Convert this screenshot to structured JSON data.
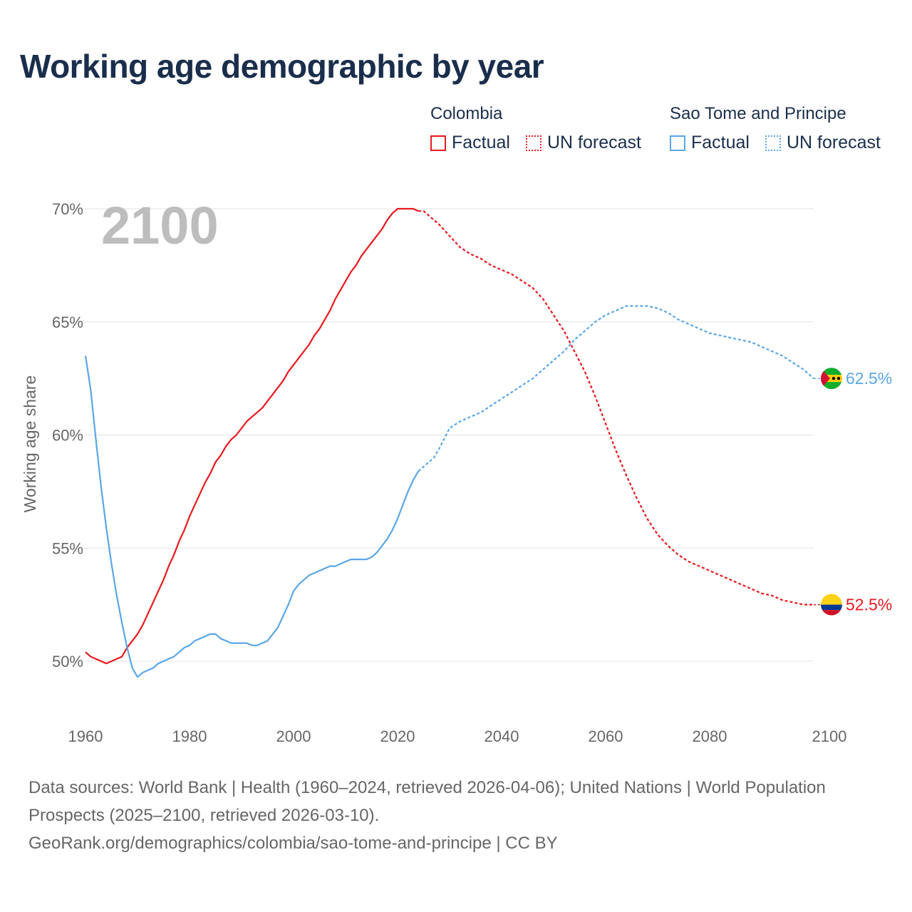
{
  "title": "Working age demographic by year",
  "legend": {
    "groups": [
      {
        "name": "Colombia",
        "color": "#e8191e",
        "factual_label": "Factual",
        "forecast_label": "UN forecast"
      },
      {
        "name": "Sao Tome and Principe",
        "color": "#5aa6e6",
        "factual_label": "Factual",
        "forecast_label": "UN forecast"
      }
    ]
  },
  "footer": {
    "sources": "Data sources: World Bank | Health (1960–2024, retrieved 2026-04-06); United Nations | World Population Prospects (2025–2100, retrieved 2026-03-10).",
    "url": "GeoRank.org/demographics/colombia/sao-tome-and-principe | CC BY"
  },
  "chart_data": {
    "type": "line",
    "title": "Working age demographic by year",
    "ylabel": "Working age share",
    "xlabel": "",
    "year_overlay": "2100",
    "xlim": [
      1960,
      2100
    ],
    "ylim": [
      48,
      71
    ],
    "x_ticks": [
      1960,
      1980,
      2000,
      2020,
      2040,
      2060,
      2080,
      2100
    ],
    "x_tick_labels": [
      "1960",
      "1980",
      "2000",
      "2020",
      "2040",
      "2060",
      "2080",
      "2100"
    ],
    "y_ticks": [
      50,
      55,
      60,
      65,
      70
    ],
    "y_tick_labels": [
      "50%",
      "55%",
      "60%",
      "65%",
      "70%"
    ],
    "forecast_start": 2024,
    "series": [
      {
        "name": "Colombia",
        "color": "#e8191e",
        "end_label": "52.5%",
        "flag": "colombia",
        "points": [
          [
            1960,
            50.4
          ],
          [
            1961,
            50.2
          ],
          [
            1962,
            50.1
          ],
          [
            1963,
            50.0
          ],
          [
            1964,
            49.9
          ],
          [
            1965,
            50.0
          ],
          [
            1966,
            50.1
          ],
          [
            1967,
            50.2
          ],
          [
            1968,
            50.6
          ],
          [
            1969,
            50.9
          ],
          [
            1970,
            51.2
          ],
          [
            1971,
            51.6
          ],
          [
            1972,
            52.1
          ],
          [
            1973,
            52.6
          ],
          [
            1974,
            53.1
          ],
          [
            1975,
            53.6
          ],
          [
            1976,
            54.2
          ],
          [
            1977,
            54.7
          ],
          [
            1978,
            55.3
          ],
          [
            1979,
            55.8
          ],
          [
            1980,
            56.4
          ],
          [
            1981,
            56.9
          ],
          [
            1982,
            57.4
          ],
          [
            1983,
            57.9
          ],
          [
            1984,
            58.3
          ],
          [
            1985,
            58.8
          ],
          [
            1986,
            59.1
          ],
          [
            1987,
            59.5
          ],
          [
            1988,
            59.8
          ],
          [
            1989,
            60.0
          ],
          [
            1990,
            60.3
          ],
          [
            1991,
            60.6
          ],
          [
            1992,
            60.8
          ],
          [
            1993,
            61.0
          ],
          [
            1994,
            61.2
          ],
          [
            1995,
            61.5
          ],
          [
            1996,
            61.8
          ],
          [
            1997,
            62.1
          ],
          [
            1998,
            62.4
          ],
          [
            1999,
            62.8
          ],
          [
            2000,
            63.1
          ],
          [
            2001,
            63.4
          ],
          [
            2002,
            63.7
          ],
          [
            2003,
            64.0
          ],
          [
            2004,
            64.4
          ],
          [
            2005,
            64.7
          ],
          [
            2006,
            65.1
          ],
          [
            2007,
            65.5
          ],
          [
            2008,
            66.0
          ],
          [
            2009,
            66.4
          ],
          [
            2010,
            66.8
          ],
          [
            2011,
            67.2
          ],
          [
            2012,
            67.5
          ],
          [
            2013,
            67.9
          ],
          [
            2014,
            68.2
          ],
          [
            2015,
            68.5
          ],
          [
            2016,
            68.8
          ],
          [
            2017,
            69.1
          ],
          [
            2018,
            69.5
          ],
          [
            2019,
            69.8
          ],
          [
            2020,
            70.0
          ],
          [
            2021,
            70.0
          ],
          [
            2022,
            70.0
          ],
          [
            2023,
            70.0
          ],
          [
            2024,
            69.9
          ],
          [
            2025,
            69.9
          ],
          [
            2026,
            69.7
          ],
          [
            2028,
            69.3
          ],
          [
            2030,
            68.8
          ],
          [
            2032,
            68.3
          ],
          [
            2034,
            68.0
          ],
          [
            2036,
            67.8
          ],
          [
            2038,
            67.5
          ],
          [
            2040,
            67.3
          ],
          [
            2042,
            67.1
          ],
          [
            2044,
            66.8
          ],
          [
            2046,
            66.5
          ],
          [
            2048,
            66.0
          ],
          [
            2050,
            65.3
          ],
          [
            2052,
            64.6
          ],
          [
            2054,
            63.7
          ],
          [
            2056,
            62.8
          ],
          [
            2058,
            61.7
          ],
          [
            2060,
            60.5
          ],
          [
            2062,
            59.3
          ],
          [
            2064,
            58.2
          ],
          [
            2066,
            57.2
          ],
          [
            2068,
            56.3
          ],
          [
            2070,
            55.6
          ],
          [
            2072,
            55.1
          ],
          [
            2074,
            54.7
          ],
          [
            2076,
            54.4
          ],
          [
            2078,
            54.2
          ],
          [
            2080,
            54.0
          ],
          [
            2082,
            53.8
          ],
          [
            2084,
            53.6
          ],
          [
            2086,
            53.4
          ],
          [
            2088,
            53.2
          ],
          [
            2090,
            53.0
          ],
          [
            2092,
            52.9
          ],
          [
            2094,
            52.7
          ],
          [
            2096,
            52.6
          ],
          [
            2098,
            52.5
          ],
          [
            2100,
            52.5
          ]
        ]
      },
      {
        "name": "Sao Tome and Principe",
        "color": "#5aa6e6",
        "end_label": "62.5%",
        "flag": "sao-tome",
        "points": [
          [
            1960,
            63.5
          ],
          [
            1961,
            62.0
          ],
          [
            1962,
            59.8
          ],
          [
            1963,
            57.7
          ],
          [
            1964,
            55.9
          ],
          [
            1965,
            54.3
          ],
          [
            1966,
            52.9
          ],
          [
            1967,
            51.7
          ],
          [
            1968,
            50.6
          ],
          [
            1969,
            49.7
          ],
          [
            1970,
            49.3
          ],
          [
            1971,
            49.5
          ],
          [
            1972,
            49.6
          ],
          [
            1973,
            49.7
          ],
          [
            1974,
            49.9
          ],
          [
            1975,
            50.0
          ],
          [
            1976,
            50.1
          ],
          [
            1977,
            50.2
          ],
          [
            1978,
            50.4
          ],
          [
            1979,
            50.6
          ],
          [
            1980,
            50.7
          ],
          [
            1981,
            50.9
          ],
          [
            1982,
            51.0
          ],
          [
            1983,
            51.1
          ],
          [
            1984,
            51.2
          ],
          [
            1985,
            51.2
          ],
          [
            1986,
            51.0
          ],
          [
            1987,
            50.9
          ],
          [
            1988,
            50.8
          ],
          [
            1989,
            50.8
          ],
          [
            1990,
            50.8
          ],
          [
            1991,
            50.8
          ],
          [
            1992,
            50.7
          ],
          [
            1993,
            50.7
          ],
          [
            1994,
            50.8
          ],
          [
            1995,
            50.9
          ],
          [
            1996,
            51.2
          ],
          [
            1997,
            51.5
          ],
          [
            1998,
            52.0
          ],
          [
            1999,
            52.5
          ],
          [
            2000,
            53.1
          ],
          [
            2001,
            53.4
          ],
          [
            2002,
            53.6
          ],
          [
            2003,
            53.8
          ],
          [
            2004,
            53.9
          ],
          [
            2005,
            54.0
          ],
          [
            2006,
            54.1
          ],
          [
            2007,
            54.2
          ],
          [
            2008,
            54.2
          ],
          [
            2009,
            54.3
          ],
          [
            2010,
            54.4
          ],
          [
            2011,
            54.5
          ],
          [
            2012,
            54.5
          ],
          [
            2013,
            54.5
          ],
          [
            2014,
            54.5
          ],
          [
            2015,
            54.6
          ],
          [
            2016,
            54.8
          ],
          [
            2017,
            55.1
          ],
          [
            2018,
            55.4
          ],
          [
            2019,
            55.8
          ],
          [
            2020,
            56.3
          ],
          [
            2021,
            56.9
          ],
          [
            2022,
            57.5
          ],
          [
            2023,
            58.0
          ],
          [
            2024,
            58.4
          ],
          [
            2025,
            58.6
          ],
          [
            2026,
            58.8
          ],
          [
            2027,
            59.0
          ],
          [
            2028,
            59.4
          ],
          [
            2030,
            60.3
          ],
          [
            2032,
            60.6
          ],
          [
            2034,
            60.8
          ],
          [
            2036,
            61.0
          ],
          [
            2038,
            61.3
          ],
          [
            2040,
            61.6
          ],
          [
            2042,
            61.9
          ],
          [
            2044,
            62.2
          ],
          [
            2046,
            62.5
          ],
          [
            2048,
            62.9
          ],
          [
            2050,
            63.3
          ],
          [
            2052,
            63.7
          ],
          [
            2054,
            64.2
          ],
          [
            2056,
            64.6
          ],
          [
            2058,
            65.0
          ],
          [
            2060,
            65.3
          ],
          [
            2062,
            65.5
          ],
          [
            2064,
            65.7
          ],
          [
            2066,
            65.7
          ],
          [
            2068,
            65.7
          ],
          [
            2070,
            65.6
          ],
          [
            2072,
            65.4
          ],
          [
            2074,
            65.1
          ],
          [
            2076,
            64.9
          ],
          [
            2078,
            64.7
          ],
          [
            2080,
            64.5
          ],
          [
            2082,
            64.4
          ],
          [
            2084,
            64.3
          ],
          [
            2086,
            64.2
          ],
          [
            2088,
            64.1
          ],
          [
            2090,
            63.9
          ],
          [
            2092,
            63.7
          ],
          [
            2094,
            63.5
          ],
          [
            2096,
            63.2
          ],
          [
            2098,
            62.9
          ],
          [
            2100,
            62.5
          ]
        ]
      }
    ]
  }
}
